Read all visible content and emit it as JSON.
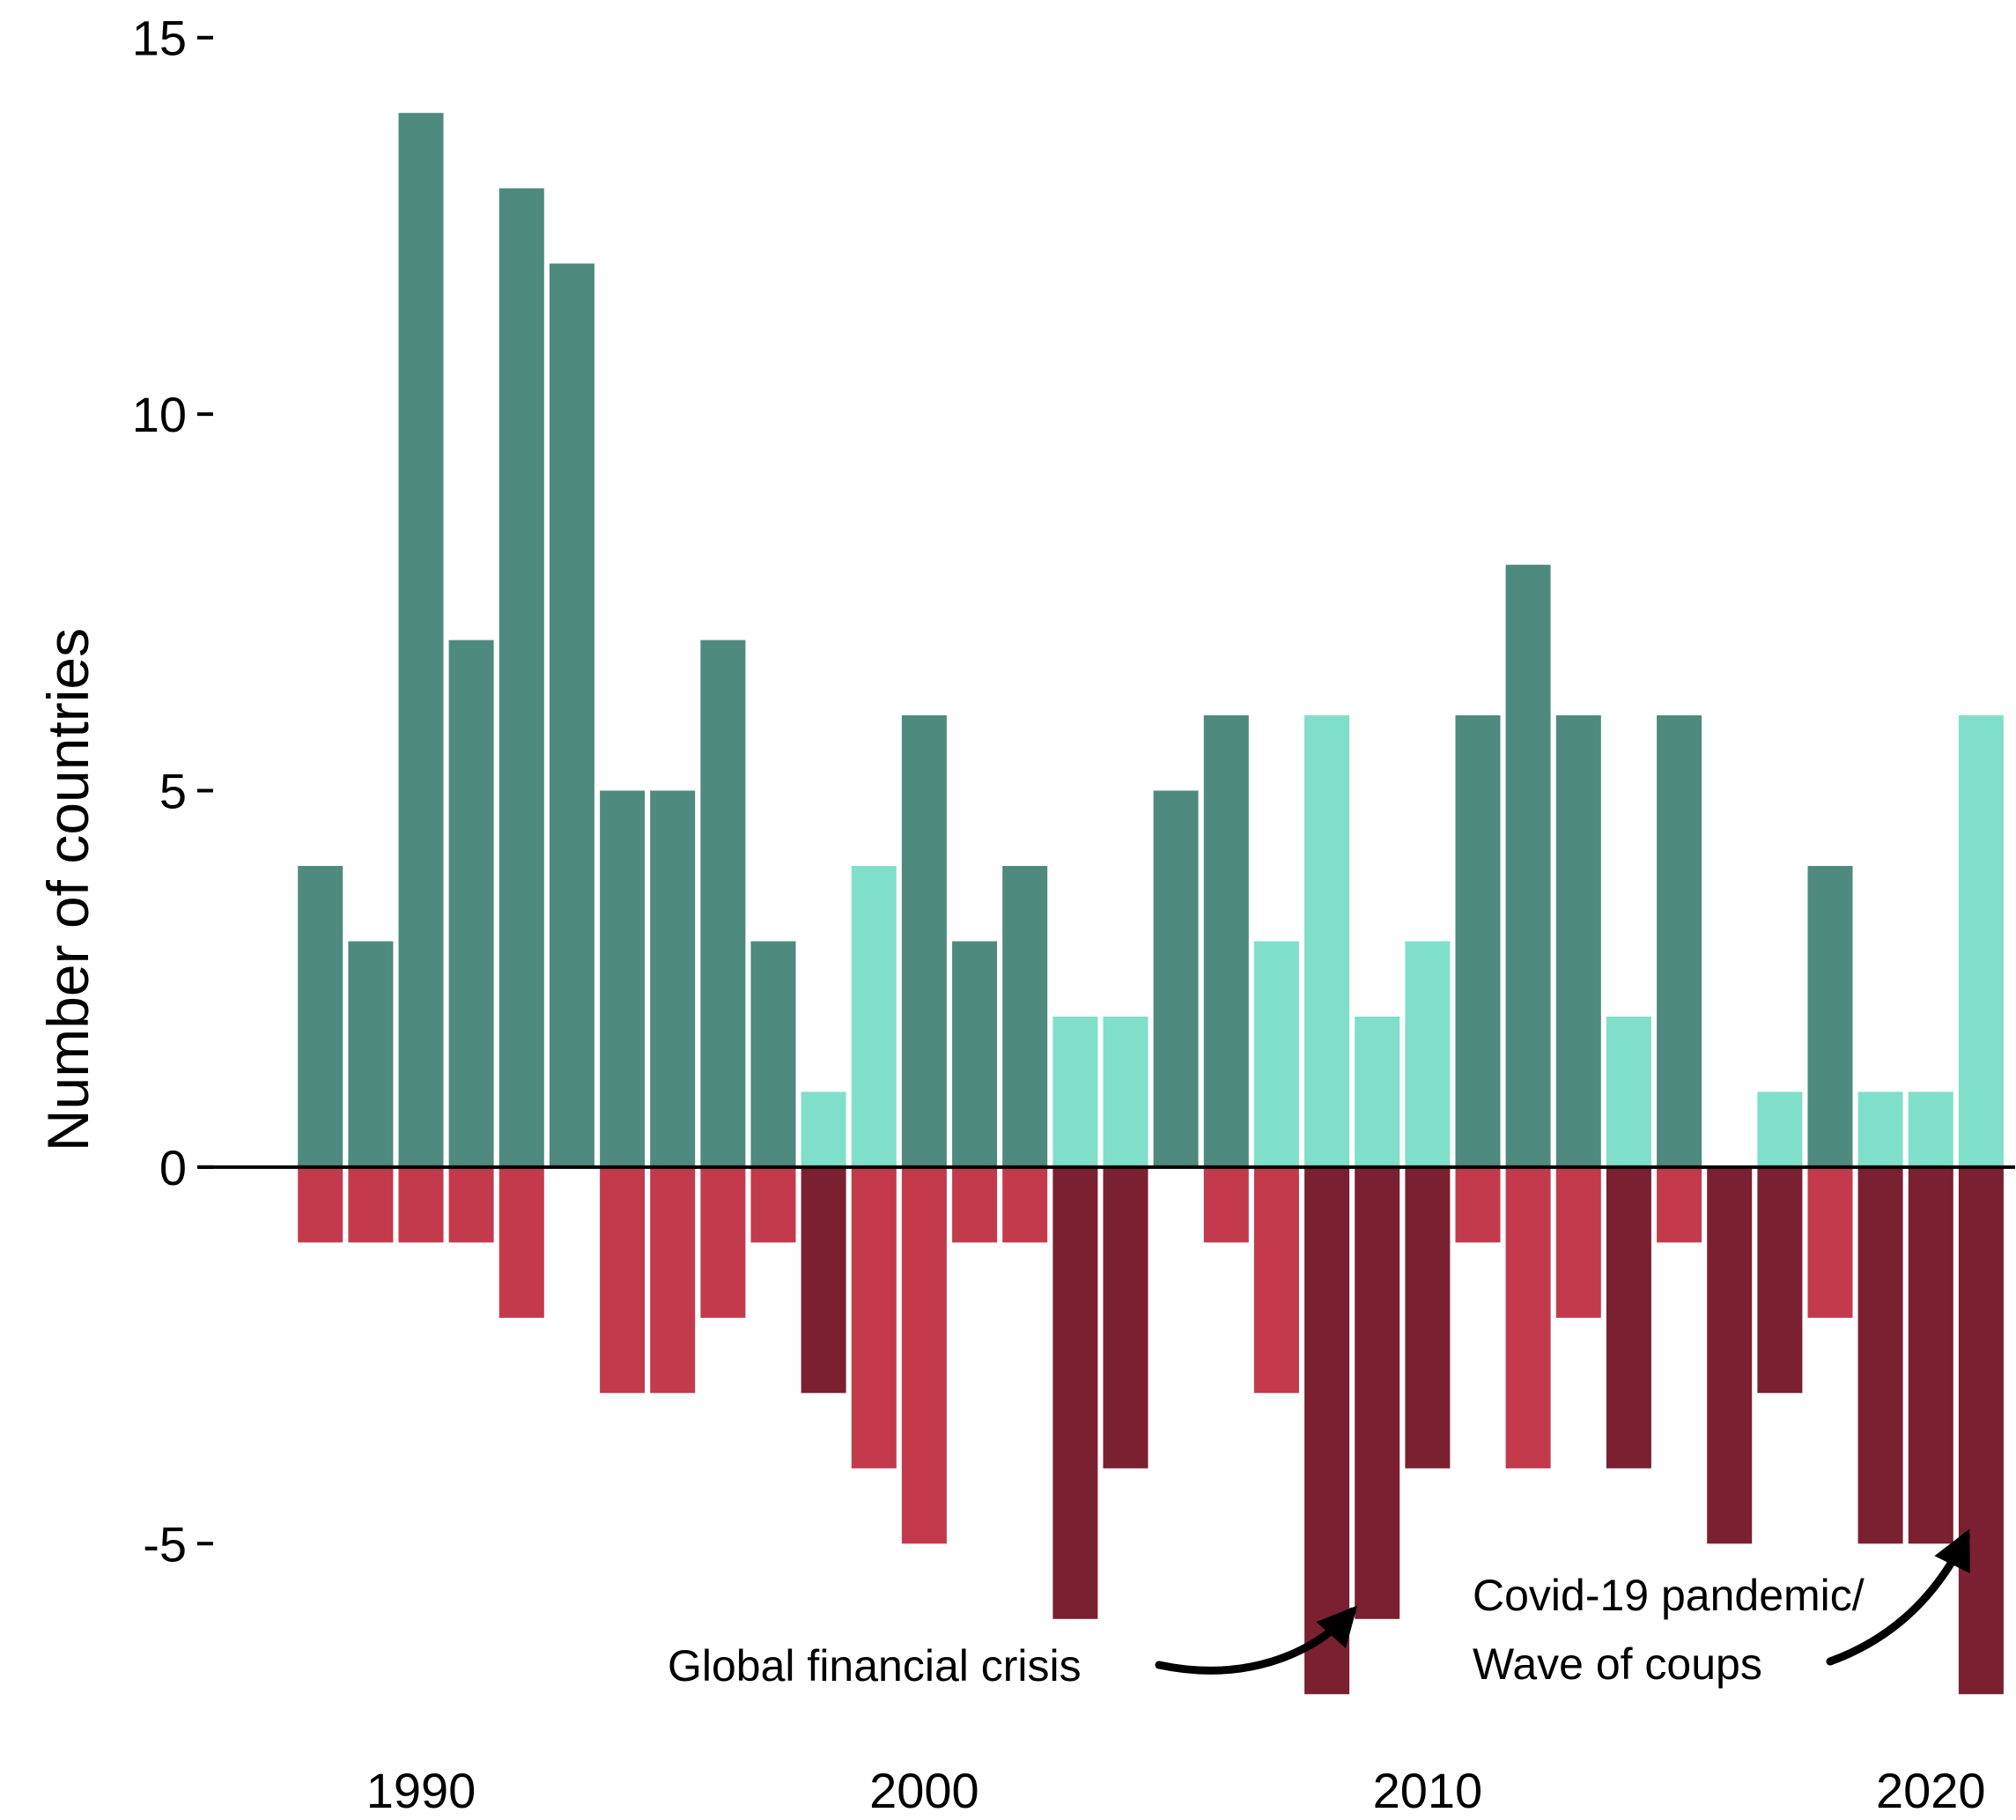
{
  "chart_data": {
    "type": "bar",
    "ylabel": "Number of countries",
    "xlabel": "",
    "title": "",
    "ylim": [
      -7.5,
      15.5
    ],
    "xlim": [
      1987.2,
      2021.5
    ],
    "yticks": [
      15,
      10,
      5,
      0,
      -5
    ],
    "ytick_labels": [
      "15",
      "10",
      "5",
      "0",
      "-5"
    ],
    "xticks": [
      1990,
      2000,
      2010,
      2020
    ],
    "xtick_labels": [
      "1990",
      "2000",
      "2010",
      "2020"
    ],
    "grid": false,
    "legend": "none",
    "years": [
      1988,
      1989,
      1990,
      1991,
      1992,
      1993,
      1994,
      1995,
      1996,
      1997,
      1998,
      1999,
      2000,
      2001,
      2002,
      2003,
      2004,
      2005,
      2006,
      2007,
      2008,
      2009,
      2010,
      2011,
      2012,
      2013,
      2014,
      2015,
      2016,
      2017,
      2018,
      2019,
      2020,
      2021
    ],
    "series": [
      {
        "values": [
          4,
          3,
          14,
          7,
          13,
          12,
          5,
          5,
          7,
          3,
          1,
          4,
          6,
          3,
          4,
          2,
          2,
          5,
          6,
          3,
          6,
          2,
          3,
          6,
          8,
          6,
          2,
          6,
          0,
          1,
          4,
          1,
          1,
          6
        ],
        "bar_colors": [
          "#4E8A7D",
          "#4E8A7D",
          "#4E8A7D",
          "#4E8A7D",
          "#4E8A7D",
          "#4E8A7D",
          "#4E8A7D",
          "#4E8A7D",
          "#4E8A7D",
          "#4E8A7D",
          "#80DFC8",
          "#80DFC8",
          "#4E8A7D",
          "#4E8A7D",
          "#4E8A7D",
          "#80DFC8",
          "#80DFC8",
          "#4E8A7D",
          "#4E8A7D",
          "#80DFC8",
          "#80DFC8",
          "#80DFC8",
          "#80DFC8",
          "#4E8A7D",
          "#4E8A7D",
          "#4E8A7D",
          "#80DFC8",
          "#4E8A7D",
          "#80DFC8",
          "#80DFC8",
          "#4E8A7D",
          "#80DFC8",
          "#80DFC8",
          "#80DFC8"
        ]
      },
      {
        "values": [
          -1,
          -1,
          -1,
          -1,
          -2,
          0,
          -3,
          -3,
          -2,
          -1,
          -3,
          -4,
          -5,
          -1,
          -1,
          -6,
          -4,
          0,
          -1,
          -3,
          -7,
          -6,
          -4,
          -1,
          -4,
          -2,
          -4,
          -1,
          -5,
          -3,
          -2,
          -5,
          -5,
          -7
        ],
        "bar_colors": [
          "#C33A4D",
          "#C33A4D",
          "#C33A4D",
          "#C33A4D",
          "#C33A4D",
          "#C33A4D",
          "#C33A4D",
          "#C33A4D",
          "#C33A4D",
          "#C33A4D",
          "#7A2030",
          "#C33A4D",
          "#C33A4D",
          "#C33A4D",
          "#C33A4D",
          "#7A2030",
          "#7A2030",
          "#C33A4D",
          "#C33A4D",
          "#C33A4D",
          "#7A2030",
          "#7A2030",
          "#7A2030",
          "#C33A4D",
          "#C33A4D",
          "#C33A4D",
          "#7A2030",
          "#C33A4D",
          "#7A2030",
          "#7A2030",
          "#C33A4D",
          "#7A2030",
          "#7A2030",
          "#7A2030"
        ]
      }
    ],
    "annotations": [
      {
        "lines": [
          "Global financial crisis"
        ],
        "target_year": 2008.5,
        "target_value": -5.9
      },
      {
        "lines": [
          "Covid-19 pandemic/",
          "Wave of coups"
        ],
        "target_year": 2020.7,
        "target_value": -4.9
      }
    ]
  }
}
